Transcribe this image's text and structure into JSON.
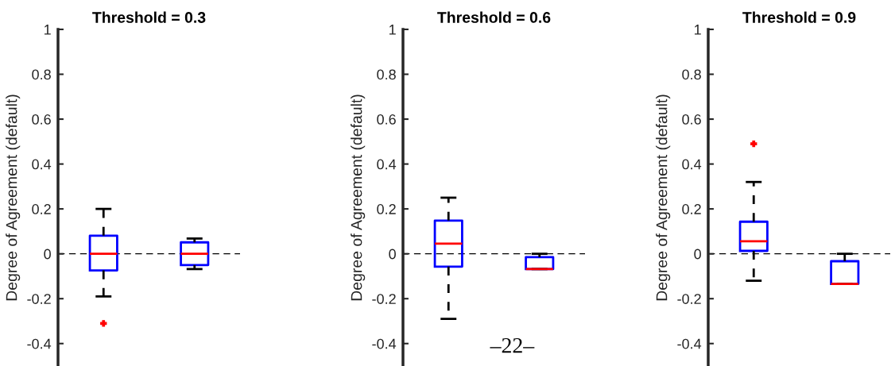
{
  "chart_data": [
    {
      "type": "box",
      "title": "Threshold = 0.3",
      "ylabel": "Degree of Agreement (default)",
      "categories": [
        null,
        null
      ],
      "ylim": [
        -0.5,
        1
      ],
      "yticks": [
        -0.4,
        -0.2,
        0,
        0.2,
        0.4,
        0.6,
        0.8,
        1
      ],
      "tick_labels": "y",
      "grid": false,
      "boxes": [
        {
          "low": -0.19,
          "q1": -0.074,
          "median": 0.0,
          "q3": 0.081,
          "high": 0.2,
          "outliers": [
            -0.31
          ]
        },
        {
          "low": -0.068,
          "q1": -0.05,
          "median": 0.0,
          "q3": 0.051,
          "high": 0.068
        }
      ],
      "ref_lines": [
        {
          "axis": "y",
          "value": 0,
          "color": "#000000",
          "line_style": "dashed"
        }
      ]
    },
    {
      "type": "box",
      "title": "Threshold = 0.6",
      "ylabel": "Degree of Agreement (default)",
      "categories": [
        null,
        null
      ],
      "ylim": [
        -0.5,
        1
      ],
      "yticks": [
        -0.4,
        -0.2,
        0,
        0.2,
        0.4,
        0.6,
        0.8,
        1
      ],
      "tick_labels": "y",
      "grid": false,
      "boxes": [
        {
          "low": -0.29,
          "q1": -0.057,
          "median": 0.045,
          "q3": 0.148,
          "high": 0.25
        },
        {
          "low": -0.068,
          "q1": -0.068,
          "median": -0.068,
          "q3": -0.015,
          "high": 0.0
        }
      ],
      "ref_lines": [
        {
          "axis": "y",
          "value": 0,
          "color": "#000000",
          "line_style": "dashed"
        }
      ],
      "annotations": [
        "–22–"
      ]
    },
    {
      "type": "box",
      "title": "Threshold = 0.9",
      "ylabel": "Degree of Agreement (default)",
      "categories": [
        null,
        null
      ],
      "ylim": [
        -0.5,
        1
      ],
      "yticks": [
        -0.4,
        -0.2,
        0,
        0.2,
        0.4,
        0.6,
        0.8,
        1
      ],
      "tick_labels": "y",
      "grid": false,
      "boxes": [
        {
          "low": -0.12,
          "q1": 0.013,
          "median": 0.056,
          "q3": 0.143,
          "high": 0.32,
          "outliers": [
            0.49
          ]
        },
        {
          "low": -0.134,
          "q1": -0.134,
          "median": -0.134,
          "q3": -0.033,
          "high": 0.0
        }
      ],
      "ref_lines": [
        {
          "axis": "y",
          "value": 0,
          "color": "#000000",
          "line_style": "dashed"
        }
      ]
    }
  ]
}
